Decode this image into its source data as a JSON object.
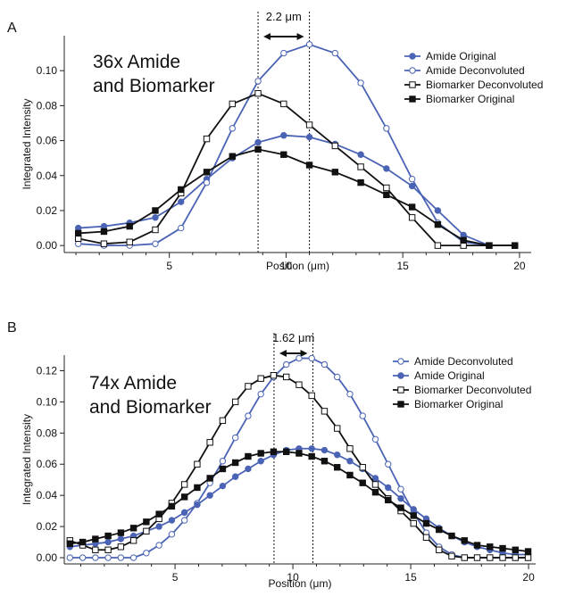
{
  "colors": {
    "blue": "#4a63b4",
    "black": "#111111",
    "axis": "#222222"
  },
  "chart_data": [
    {
      "type": "line",
      "panel_label": "A",
      "title": "36x Amide and Biomarker",
      "title_lines": [
        "36x Amide",
        "and Biomarker"
      ],
      "xlabel": "Position (μm)",
      "ylabel": "Integrated Intensity",
      "xlim": [
        0.5,
        20.5
      ],
      "ylim": [
        -0.004,
        0.12
      ],
      "xticks": [
        5,
        10,
        15,
        20
      ],
      "yticks": [
        0.0,
        0.02,
        0.04,
        0.06,
        0.08,
        0.1
      ],
      "ytick_labels": [
        "0.00",
        "0.02",
        "0.04",
        "0.06",
        "0.08",
        "0.10"
      ],
      "grid": false,
      "legend_position": "top-right",
      "annotation": {
        "text": "2.2 μm",
        "lines_x": [
          8.8,
          11.0
        ]
      },
      "series": [
        {
          "name": "Amide Original",
          "color": "#4a63b4",
          "marker": "filled-circle",
          "x": [
            1.1,
            2.2,
            3.3,
            4.4,
            5.5,
            6.6,
            7.7,
            8.8,
            9.9,
            11.0,
            12.1,
            13.2,
            14.3,
            15.4,
            16.5,
            17.6,
            18.7,
            19.8
          ],
          "y": [
            0.01,
            0.011,
            0.013,
            0.016,
            0.025,
            0.038,
            0.05,
            0.059,
            0.063,
            0.062,
            0.058,
            0.052,
            0.044,
            0.034,
            0.02,
            0.006,
            0.0,
            0.0
          ]
        },
        {
          "name": "Amide Deconvoluted",
          "color": "#4a63b4",
          "marker": "open-circle",
          "x": [
            1.1,
            2.2,
            3.3,
            4.4,
            5.5,
            6.6,
            7.7,
            8.8,
            9.9,
            11.0,
            12.1,
            13.2,
            14.3,
            15.4,
            16.5,
            17.6,
            18.7,
            19.8
          ],
          "y": [
            0.001,
            0.0,
            0.0,
            0.001,
            0.01,
            0.036,
            0.067,
            0.094,
            0.11,
            0.115,
            0.11,
            0.093,
            0.067,
            0.038,
            0.013,
            0.002,
            0.0,
            0.0
          ]
        },
        {
          "name": "Biomarker Deconvoluted",
          "color": "#111111",
          "marker": "open-square",
          "x": [
            1.1,
            2.2,
            3.3,
            4.4,
            5.5,
            6.6,
            7.7,
            8.8,
            9.9,
            11.0,
            12.1,
            13.2,
            14.3,
            15.4,
            16.5,
            17.6,
            18.7,
            19.8
          ],
          "y": [
            0.004,
            0.001,
            0.002,
            0.009,
            0.03,
            0.061,
            0.081,
            0.087,
            0.081,
            0.069,
            0.057,
            0.045,
            0.033,
            0.016,
            0.0,
            0.0,
            0.0,
            0.0
          ]
        },
        {
          "name": "Biomarker Original",
          "color": "#111111",
          "marker": "filled-square",
          "x": [
            1.1,
            2.2,
            3.3,
            4.4,
            5.5,
            6.6,
            7.7,
            8.8,
            9.9,
            11.0,
            12.1,
            13.2,
            14.3,
            15.4,
            16.5,
            17.6,
            18.7,
            19.8
          ],
          "y": [
            0.007,
            0.008,
            0.011,
            0.02,
            0.032,
            0.042,
            0.051,
            0.055,
            0.052,
            0.046,
            0.042,
            0.036,
            0.029,
            0.022,
            0.012,
            0.003,
            0.0,
            0.0
          ]
        }
      ]
    },
    {
      "type": "line",
      "panel_label": "B",
      "title": "74x Amide and Biomarker",
      "title_lines": [
        "74x Amide",
        "and Biomarker"
      ],
      "xlabel": "Position (μm)",
      "ylabel": "Integrated Intensity",
      "xlim": [
        0.3,
        20.3
      ],
      "ylim": [
        -0.004,
        0.13
      ],
      "xticks": [
        5,
        10,
        15,
        20
      ],
      "yticks": [
        0.0,
        0.02,
        0.04,
        0.06,
        0.08,
        0.1,
        0.12
      ],
      "ytick_labels": [
        "0.00",
        "0.02",
        "0.04",
        "0.06",
        "0.08",
        "0.10",
        "0.12"
      ],
      "grid": false,
      "legend_position": "top-right",
      "annotation": {
        "text": "1.62 μm",
        "lines_x": [
          9.2,
          10.85
        ]
      },
      "series": [
        {
          "name": "Amide Deconvoluted",
          "color": "#4a63b4",
          "marker": "open-circle",
          "x": [
            0.54,
            1.08,
            1.62,
            2.16,
            2.7,
            3.24,
            3.78,
            4.32,
            4.86,
            5.4,
            5.94,
            6.48,
            7.02,
            7.56,
            8.1,
            8.64,
            9.18,
            9.72,
            10.26,
            10.8,
            11.34,
            11.88,
            12.42,
            12.96,
            13.5,
            14.04,
            14.58,
            15.12,
            15.66,
            16.2,
            16.74,
            17.28,
            17.82,
            18.36,
            18.9,
            19.44,
            19.98
          ],
          "y": [
            0.0,
            0.0,
            0.0,
            0.0,
            0.0,
            0.0,
            0.003,
            0.008,
            0.015,
            0.024,
            0.035,
            0.048,
            0.062,
            0.077,
            0.091,
            0.105,
            0.116,
            0.124,
            0.128,
            0.128,
            0.124,
            0.116,
            0.105,
            0.091,
            0.076,
            0.06,
            0.044,
            0.029,
            0.016,
            0.007,
            0.002,
            0.0,
            0.0,
            0.0,
            0.0,
            0.0,
            0.0
          ]
        },
        {
          "name": "Amide Original",
          "color": "#4a63b4",
          "marker": "filled-circle",
          "x": [
            0.54,
            1.08,
            1.62,
            2.16,
            2.7,
            3.24,
            3.78,
            4.32,
            4.86,
            5.4,
            5.94,
            6.48,
            7.02,
            7.56,
            8.1,
            8.64,
            9.18,
            9.72,
            10.26,
            10.8,
            11.34,
            11.88,
            12.42,
            12.96,
            13.5,
            14.04,
            14.58,
            15.12,
            15.66,
            16.2,
            16.74,
            17.28,
            17.82,
            18.36,
            18.9,
            19.44,
            19.98
          ],
          "y": [
            0.007,
            0.008,
            0.009,
            0.01,
            0.012,
            0.014,
            0.017,
            0.02,
            0.024,
            0.029,
            0.034,
            0.04,
            0.046,
            0.052,
            0.057,
            0.062,
            0.066,
            0.069,
            0.07,
            0.07,
            0.069,
            0.066,
            0.062,
            0.057,
            0.051,
            0.045,
            0.038,
            0.031,
            0.025,
            0.019,
            0.014,
            0.01,
            0.007,
            0.005,
            0.003,
            0.002,
            0.002
          ]
        },
        {
          "name": "Biomarker Deconvoluted",
          "color": "#111111",
          "marker": "open-square",
          "x": [
            0.54,
            1.08,
            1.62,
            2.16,
            2.7,
            3.24,
            3.78,
            4.32,
            4.86,
            5.4,
            5.94,
            6.48,
            7.02,
            7.56,
            8.1,
            8.64,
            9.18,
            9.72,
            10.26,
            10.8,
            11.34,
            11.88,
            12.42,
            12.96,
            13.5,
            14.04,
            14.58,
            15.12,
            15.66,
            16.2,
            16.74,
            17.28,
            17.82,
            18.36,
            18.9,
            19.44,
            19.98
          ],
          "y": [
            0.011,
            0.008,
            0.005,
            0.005,
            0.007,
            0.011,
            0.017,
            0.025,
            0.035,
            0.047,
            0.06,
            0.074,
            0.088,
            0.1,
            0.11,
            0.115,
            0.117,
            0.116,
            0.111,
            0.104,
            0.094,
            0.083,
            0.07,
            0.058,
            0.047,
            0.038,
            0.03,
            0.022,
            0.013,
            0.005,
            0.001,
            0.0,
            0.0,
            0.0,
            0.0,
            0.0,
            0.0
          ]
        },
        {
          "name": "Biomarker Original",
          "color": "#111111",
          "marker": "filled-square",
          "x": [
            0.54,
            1.08,
            1.62,
            2.16,
            2.7,
            3.24,
            3.78,
            4.32,
            4.86,
            5.4,
            5.94,
            6.48,
            7.02,
            7.56,
            8.1,
            8.64,
            9.18,
            9.72,
            10.26,
            10.8,
            11.34,
            11.88,
            12.42,
            12.96,
            13.5,
            14.04,
            14.58,
            15.12,
            15.66,
            16.2,
            16.74,
            17.28,
            17.82,
            18.36,
            18.9,
            19.44,
            19.98
          ],
          "y": [
            0.009,
            0.01,
            0.012,
            0.014,
            0.016,
            0.019,
            0.023,
            0.028,
            0.033,
            0.039,
            0.045,
            0.051,
            0.057,
            0.061,
            0.065,
            0.067,
            0.068,
            0.068,
            0.067,
            0.065,
            0.062,
            0.058,
            0.053,
            0.048,
            0.042,
            0.037,
            0.032,
            0.027,
            0.022,
            0.018,
            0.014,
            0.011,
            0.008,
            0.007,
            0.006,
            0.005,
            0.004
          ]
        }
      ]
    }
  ]
}
